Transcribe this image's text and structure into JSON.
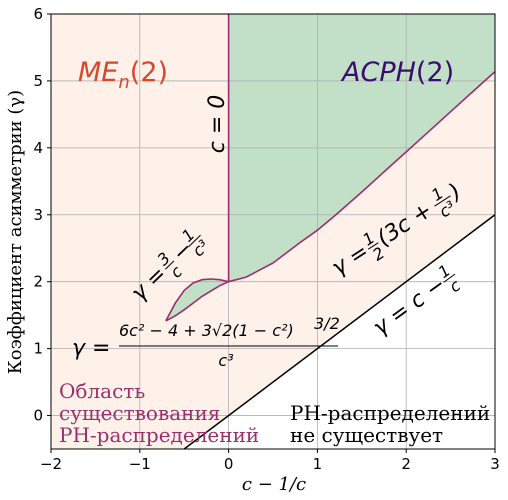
{
  "chart_data": {
    "type": "area",
    "xlabel": "c − 1/c",
    "ylabel": "Коэффициент асимметрии (γ)",
    "xlim": [
      -2,
      3
    ],
    "ylim": [
      -0.5,
      6
    ],
    "xticks": [
      "−2",
      "−1",
      "0",
      "1",
      "2",
      "3"
    ],
    "yticks": [
      "0",
      "1",
      "2",
      "3",
      "4",
      "5",
      "6"
    ],
    "xtick_values": [
      -2,
      -1,
      0,
      1,
      2,
      3
    ],
    "ytick_values": [
      0,
      1,
      2,
      3,
      4,
      5,
      6
    ],
    "grid": true,
    "colors": {
      "me_region": "#fdf1ea",
      "acph_region": "#c2dfc8",
      "boundary_curve": "#9b2f6b",
      "me_label": "#d9472b",
      "acph_label": "#3a0d6e",
      "note_text": "#9b2f6b"
    },
    "region_labels": {
      "me_main": "ME",
      "me_sub": "n",
      "me_arg": "(2)",
      "acph_main": "ACPH",
      "acph_arg": "(2)"
    },
    "curves": {
      "lower_bound": {
        "formula": "γ = c − 1/c",
        "x": [
          -2,
          3
        ],
        "y": [
          -2,
          3
        ]
      },
      "acph_boundary": {
        "formula": "γ = ½(3c + 1/c³)",
        "x": [
          0,
          0.2,
          0.5,
          0.8,
          1.0,
          1.2,
          1.5,
          1.8,
          2.0,
          2.2,
          2.5,
          2.8,
          3.0
        ],
        "y": [
          2.0,
          2.07,
          2.28,
          2.58,
          2.77,
          2.99,
          3.34,
          3.7,
          3.94,
          4.18,
          4.54,
          4.9,
          5.14
        ]
      },
      "left_lower": {
        "formula": "γ = (6c² − 4 + 3√2(1 − c²)^(3/2)) / c³",
        "x": [
          -0.707,
          -0.6,
          -0.5,
          -0.4,
          -0.3,
          -0.2,
          -0.1,
          0.0
        ],
        "y": [
          1.414,
          1.49,
          1.58,
          1.68,
          1.78,
          1.86,
          1.94,
          2.0
        ]
      },
      "left_upper": {
        "formula": "γ = 3/c − 1/c³",
        "x": [
          -0.707,
          -0.6,
          -0.5,
          -0.4,
          -0.3,
          -0.2,
          -0.1,
          0.0
        ],
        "y": [
          1.414,
          1.68,
          1.87,
          1.98,
          2.03,
          2.04,
          2.03,
          2.0
        ]
      },
      "c_equals_zero": {
        "formula": "c = 0",
        "x": [
          0,
          0
        ],
        "y": [
          2,
          6
        ]
      }
    },
    "annotations": {
      "c0": "c = 0",
      "eq_acph_prefix": "γ = ",
      "eq_acph_half_num": "1",
      "eq_acph_half_den": "2",
      "eq_acph_paren": "(3c + ",
      "eq_acph_frac_num": "1",
      "eq_acph_frac_den": "c³",
      "eq_acph_close": ")",
      "eq_upper_prefix": "γ = ",
      "eq_upper_num1": "3",
      "eq_upper_den1": "c",
      "eq_upper_minus": "−",
      "eq_upper_num2": "1",
      "eq_upper_den2": "c³",
      "eq_lower_prefix": "γ = c − ",
      "eq_lower_num": "1",
      "eq_lower_den": "c",
      "eq_big_prefix": "γ = ",
      "eq_big_num": "6c² − 4 + 3√2(1 − c²)",
      "eq_big_exp": "3/2",
      "eq_big_den": "c³",
      "note_exists_1": "Область",
      "note_exists_2": "существования",
      "note_exists_3": "PH-распределений",
      "note_none_1": "PH-распределений",
      "note_none_2": "не существует"
    }
  }
}
